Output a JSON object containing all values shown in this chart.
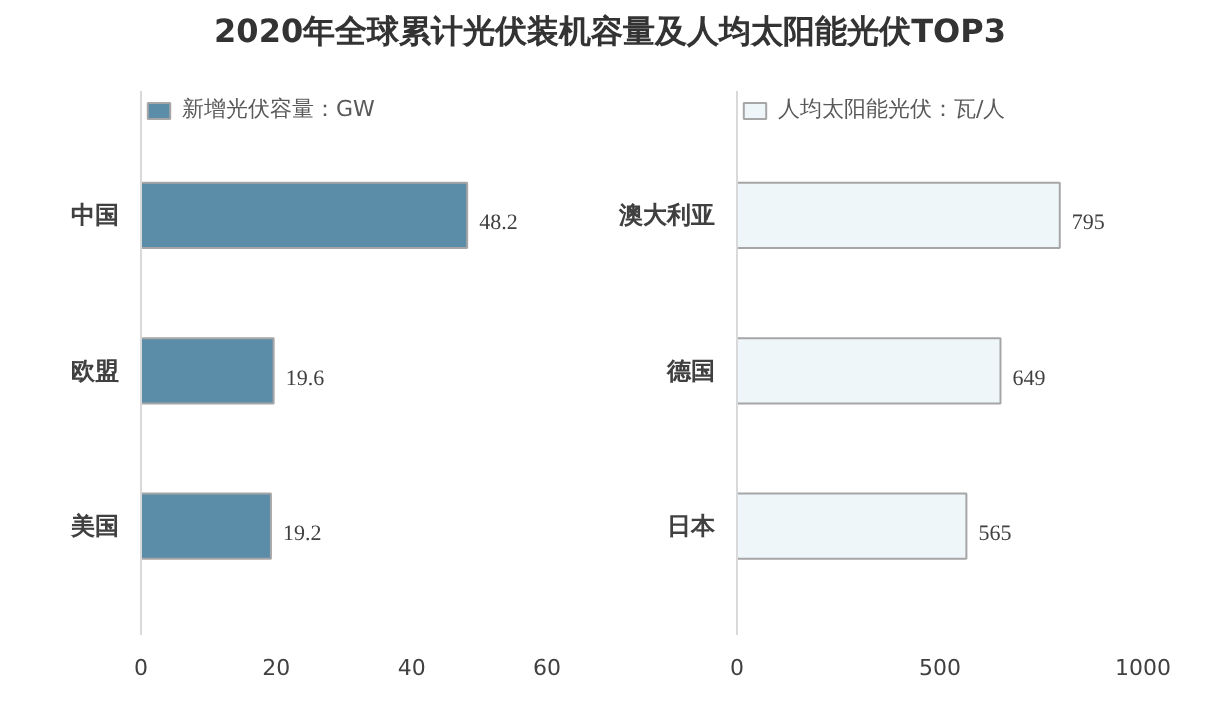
{
  "chart_data": [
    {
      "type": "bar",
      "orientation": "horizontal",
      "title": "2020年全球累计光伏装机容量及人均太阳能光伏TOP3",
      "categories": [
        "中国",
        "欧盟",
        "美国"
      ],
      "series": [
        {
          "name": "新增光伏容量：GW",
          "color": "#5b8ca8",
          "values": [
            48.2,
            19.6,
            19.2
          ]
        }
      ],
      "xlim": [
        0,
        60
      ],
      "xticks": [
        0,
        20,
        40,
        60
      ],
      "data_labels": true,
      "legend": "top left",
      "grid": false
    },
    {
      "type": "bar",
      "orientation": "horizontal",
      "categories": [
        "澳大利亚",
        "德国",
        "日本"
      ],
      "series": [
        {
          "name": "人均太阳能光伏：瓦/人",
          "color": "#eef6fa",
          "values": [
            795,
            649,
            565
          ]
        }
      ],
      "xlim": [
        0,
        1000
      ],
      "xticks": [
        0,
        500,
        1000
      ],
      "data_labels": true,
      "legend": "top left",
      "grid": false
    }
  ]
}
